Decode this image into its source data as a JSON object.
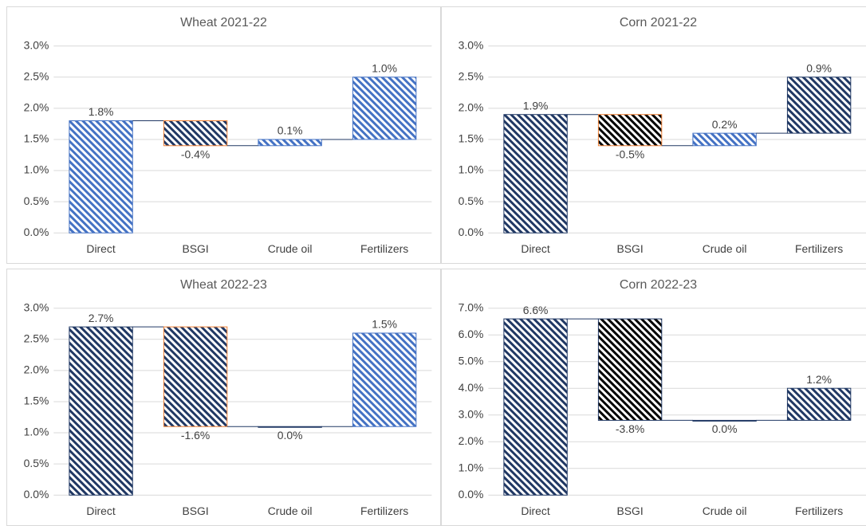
{
  "chart_data": [
    {
      "type": "waterfall",
      "title": "Wheat  2021-22",
      "categories": [
        "Direct",
        "BSGI",
        "Crude oil",
        "Fertilizers"
      ],
      "values": [
        1.8,
        -0.4,
        0.1,
        1.0
      ],
      "value_labels": [
        "1.8%",
        "-0.4%",
        "0.1%",
        "1.0%"
      ],
      "colors": [
        "#4472c4",
        "#203864",
        "#4472c4",
        "#4472c4"
      ],
      "edge_colors": [
        "#4472c4",
        "#ed7d31",
        "#4472c4",
        "#4472c4"
      ],
      "ylim": [
        0,
        3
      ],
      "yticks": [
        {
          "value": 0,
          "label": "0.0%"
        },
        {
          "value": 0.5,
          "label": "0.5%"
        },
        {
          "value": 1,
          "label": "1.0%"
        },
        {
          "value": 1.5,
          "label": "1.5%"
        },
        {
          "value": 2,
          "label": "2.0%"
        },
        {
          "value": 2.5,
          "label": "2.5%"
        },
        {
          "value": 3,
          "label": "3.0%"
        }
      ],
      "grid": true
    },
    {
      "type": "waterfall",
      "title": "Corn  2021-22",
      "categories": [
        "Direct",
        "BSGI",
        "Crude oil",
        "Fertilizers"
      ],
      "values": [
        1.9,
        -0.5,
        0.2,
        0.9
      ],
      "value_labels": [
        "1.9%",
        "-0.5%",
        "0.2%",
        "0.9%"
      ],
      "colors": [
        "#203864",
        "#000000",
        "#4472c4",
        "#203864"
      ],
      "edge_colors": [
        "#203864",
        "#ed7d31",
        "#4472c4",
        "#203864"
      ],
      "ylim": [
        0,
        3
      ],
      "yticks": [
        {
          "value": 0,
          "label": "0.0%"
        },
        {
          "value": 0.5,
          "label": "0.5%"
        },
        {
          "value": 1,
          "label": "1.0%"
        },
        {
          "value": 1.5,
          "label": "1.5%"
        },
        {
          "value": 2,
          "label": "2.0%"
        },
        {
          "value": 2.5,
          "label": "2.5%"
        },
        {
          "value": 3,
          "label": "3.0%"
        }
      ],
      "grid": true
    },
    {
      "type": "waterfall",
      "title": "Wheat  2022-23",
      "categories": [
        "Direct",
        "BSGI",
        "Crude oil",
        "Fertilizers"
      ],
      "values": [
        2.7,
        -1.6,
        0.0,
        1.5
      ],
      "value_labels": [
        "2.7%",
        "-1.6%",
        "0.0%",
        "1.5%"
      ],
      "colors": [
        "#203864",
        "#203864",
        "#203864",
        "#4472c4"
      ],
      "edge_colors": [
        "#203864",
        "#ed7d31",
        "#203864",
        "#4472c4"
      ],
      "ylim": [
        0,
        3
      ],
      "yticks": [
        {
          "value": 0,
          "label": "0.0%"
        },
        {
          "value": 0.5,
          "label": "0.5%"
        },
        {
          "value": 1,
          "label": "1.0%"
        },
        {
          "value": 1.5,
          "label": "1.5%"
        },
        {
          "value": 2,
          "label": "2.0%"
        },
        {
          "value": 2.5,
          "label": "2.5%"
        },
        {
          "value": 3,
          "label": "3.0%"
        }
      ],
      "grid": true
    },
    {
      "type": "waterfall",
      "title": "Corn  2022-23",
      "categories": [
        "Direct",
        "BSGI",
        "Crude oil",
        "Fertilizers"
      ],
      "values": [
        6.6,
        -3.8,
        0.0,
        1.2
      ],
      "value_labels": [
        "6.6%",
        "-3.8%",
        "0.0%",
        "1.2%"
      ],
      "colors": [
        "#203864",
        "#000000",
        "#203864",
        "#203864"
      ],
      "edge_colors": [
        "#203864",
        "#203864",
        "#203864",
        "#203864"
      ],
      "ylim": [
        0,
        7
      ],
      "yticks": [
        {
          "value": 0,
          "label": "0.0%"
        },
        {
          "value": 1,
          "label": "1.0%"
        },
        {
          "value": 2,
          "label": "2.0%"
        },
        {
          "value": 3,
          "label": "3.0%"
        },
        {
          "value": 4,
          "label": "4.0%"
        },
        {
          "value": 5,
          "label": "5.0%"
        },
        {
          "value": 6,
          "label": "6.0%"
        },
        {
          "value": 7,
          "label": "7.0%"
        }
      ],
      "grid": true
    }
  ]
}
